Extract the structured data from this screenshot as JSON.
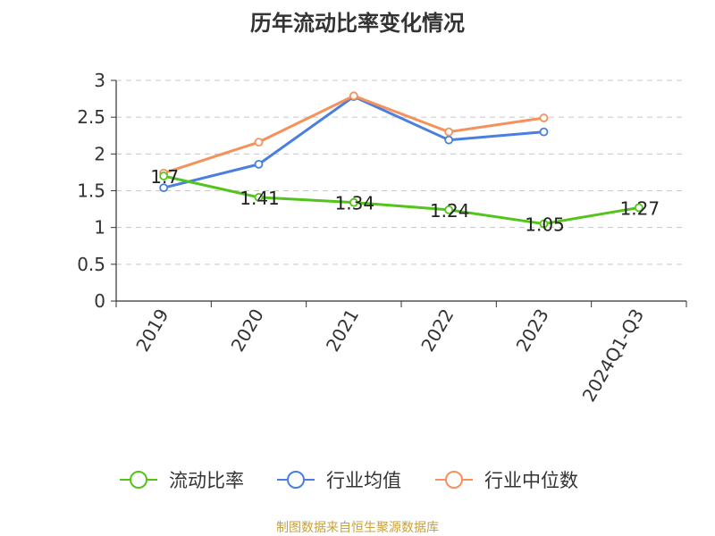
{
  "chart_data": {
    "type": "line",
    "title": "历年流动比率变化情况",
    "xlabel": "",
    "ylabel": "",
    "categories": [
      "2019",
      "2020",
      "2021",
      "2022",
      "2023",
      "2024Q1-Q3"
    ],
    "ylim": [
      0,
      3
    ],
    "yticks": [
      "0",
      "0.5",
      "1",
      "1.5",
      "2",
      "2.5",
      "3"
    ],
    "grid": true,
    "legend_position": "bottom",
    "series": [
      {
        "name": "流动比率",
        "color": "#52c41a",
        "values": [
          1.7,
          1.41,
          1.34,
          1.24,
          1.05,
          1.27
        ],
        "labels": [
          "1.7",
          "1.41",
          "1.34",
          "1.24",
          "1.05",
          "1.27"
        ]
      },
      {
        "name": "行业均值",
        "color": "#4a7fe0",
        "values": [
          1.54,
          1.86,
          2.78,
          2.19,
          2.3,
          null
        ]
      },
      {
        "name": "行业中位数",
        "color": "#f5915a",
        "values": [
          1.74,
          2.16,
          2.79,
          2.3,
          2.49,
          null
        ]
      }
    ]
  },
  "source": "制图数据来自恒生聚源数据库"
}
